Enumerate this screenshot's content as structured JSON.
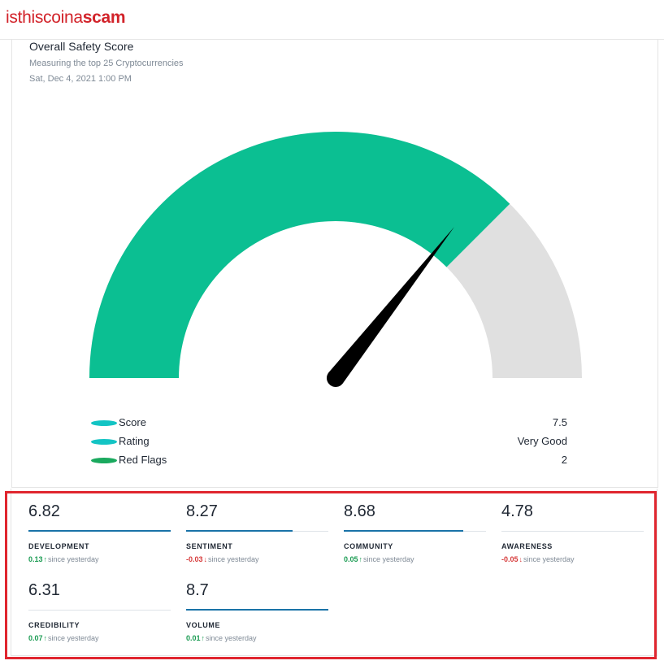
{
  "header": {
    "logo_light": "isthiscoina",
    "logo_bold": "scam"
  },
  "card": {
    "title": "Overall Safety Score",
    "subtitle": "Measuring the top 25 Cryptocurrencies",
    "date": "Sat, Dec 4, 2021 1:00 PM"
  },
  "gauge": {
    "score_fraction": 0.75,
    "fill_color": "#0bbf92",
    "track_color": "#e0e0e0",
    "needle_color": "#000000"
  },
  "legend": [
    {
      "label": "Score",
      "value": "7.5",
      "color": "#13c4c4"
    },
    {
      "label": "Rating",
      "value": "Very Good",
      "color": "#13c4c4"
    },
    {
      "label": "Red Flags",
      "value": "2",
      "color": "#1aa95e"
    }
  ],
  "metrics": [
    {
      "value": "6.82",
      "label": "DEVELOPMENT",
      "change": "0.13",
      "direction": "up",
      "since": "since yesterday",
      "fill_fraction": 1.0
    },
    {
      "value": "8.27",
      "label": "SENTIMENT",
      "change": "-0.03",
      "direction": "down",
      "since": "since yesterday",
      "fill_fraction": 0.75
    },
    {
      "value": "8.68",
      "label": "COMMUNITY",
      "change": "0.05",
      "direction": "up",
      "since": "since yesterday",
      "fill_fraction": 0.84
    },
    {
      "value": "4.78",
      "label": "AWARENESS",
      "change": "-0.05",
      "direction": "down",
      "since": "since yesterday",
      "fill_fraction": 0.0
    },
    {
      "value": "6.31",
      "label": "CREDIBILITY",
      "change": "0.07",
      "direction": "up",
      "since": "since yesterday",
      "fill_fraction": 0.0
    },
    {
      "value": "8.7",
      "label": "VOLUME",
      "change": "0.01",
      "direction": "up",
      "since": "since yesterday",
      "fill_fraction": 1.0
    }
  ]
}
